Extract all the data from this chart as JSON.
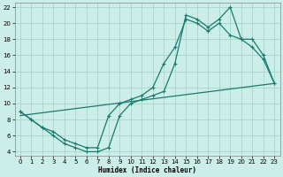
{
  "xlabel": "Humidex (Indice chaleur)",
  "bg_color": "#cceee8",
  "grid_color": "#aad4cc",
  "line_color": "#1a7a6e",
  "line1_y": [
    9,
    8,
    7,
    6.5,
    5.5,
    5,
    4.5,
    4.5,
    8.5,
    10,
    10.5,
    11,
    12,
    15,
    17,
    20.5,
    20,
    19,
    20,
    18.5,
    18,
    17,
    15.5,
    12.5
  ],
  "line2_y": [
    9,
    8,
    7,
    6,
    5,
    4.5,
    4,
    4,
    4.5,
    8.5,
    10,
    10.5,
    11,
    11.5,
    15,
    21,
    20.5,
    19.5,
    20.5,
    22,
    18,
    18,
    16,
    12.5
  ],
  "line3_y": [
    8.5,
    12.5
  ],
  "line3_x": [
    0,
    23
  ],
  "xlim": [
    -0.5,
    23.5
  ],
  "ylim": [
    3.5,
    22.5
  ],
  "yticks": [
    4,
    6,
    8,
    10,
    12,
    14,
    16,
    18,
    20,
    22
  ],
  "xticks": [
    0,
    1,
    2,
    3,
    4,
    5,
    6,
    7,
    8,
    9,
    10,
    11,
    12,
    13,
    14,
    15,
    16,
    17,
    18,
    19,
    20,
    21,
    22,
    23
  ]
}
